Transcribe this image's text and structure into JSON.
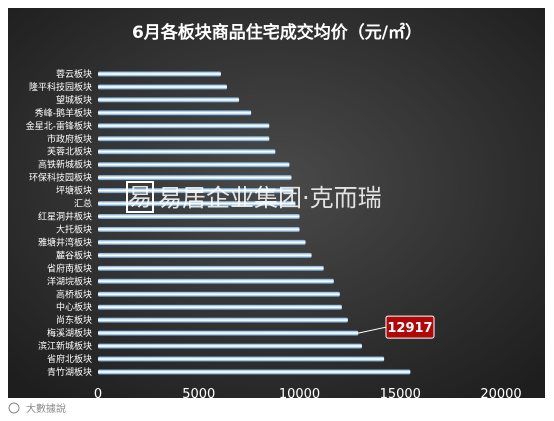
{
  "chart_data": {
    "type": "bar",
    "orientation": "horizontal",
    "title": "6月各板块商品住宅成交均价（元/㎡）",
    "categories": [
      "蓉云板块",
      "隆平科技园板块",
      "望城板块",
      "秀峰-鹅羊板块",
      "金星北-雷锋板块",
      "市政府板块",
      "芙蓉北板块",
      "高铁新城板块",
      "环保科技园板块",
      "坪塘板块",
      "汇总",
      "红星洞井板块",
      "大托板块",
      "雅塘井湾板块",
      "麓谷板块",
      "省府南板块",
      "洋湖垸板块",
      "高桥板块",
      "中心板块",
      "尚东板块",
      "梅溪湖板块",
      "滨江新城板块",
      "省府北板块",
      "青竹湖板块"
    ],
    "values": [
      6100,
      6400,
      7000,
      7600,
      8500,
      8500,
      8800,
      9500,
      9600,
      9700,
      9800,
      10000,
      10000,
      10300,
      10600,
      11200,
      11700,
      12000,
      12100,
      12400,
      12917,
      13100,
      14200,
      15500
    ],
    "xlim": [
      0,
      20000
    ],
    "xticks": [
      "0",
      "5000",
      "10000",
      "15000",
      "20000"
    ],
    "annotation": {
      "text": "12917",
      "category": "梅溪湖板块"
    },
    "legend": "none",
    "colors": {
      "background": "#2a2a2a",
      "bar_edge": "#5d9fd0",
      "bar_core": "#ffffff",
      "label_bg": "#b00808",
      "title": "#ffffff"
    }
  },
  "watermark": {
    "text": "易居企业集团·克而瑞",
    "logo_text": "易"
  },
  "caption": "大數據說"
}
